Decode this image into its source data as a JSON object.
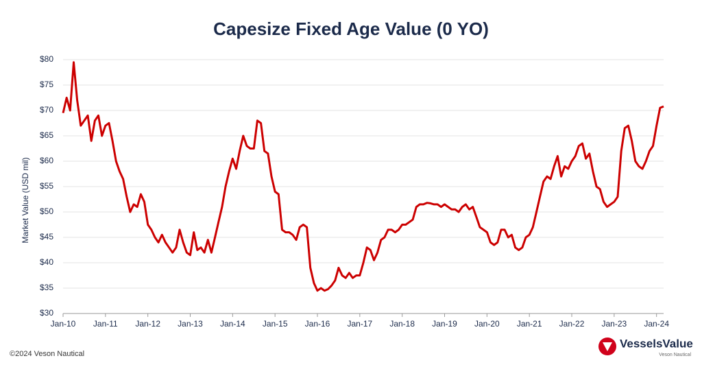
{
  "chart_data": {
    "type": "line",
    "title": "Capesize Fixed Age Value (0 YO)",
    "y_label": "Market Value (USD mil)",
    "color": "#cc0000",
    "grid": true,
    "categories": [
      "Jan-10",
      null,
      null,
      null,
      null,
      null,
      null,
      null,
      null,
      null,
      null,
      null,
      "Jan-11",
      null,
      null,
      null,
      null,
      null,
      null,
      null,
      null,
      null,
      null,
      null,
      "Jan-12",
      null,
      null,
      null,
      null,
      null,
      null,
      null,
      null,
      null,
      null,
      null,
      "Jan-13",
      null,
      null,
      null,
      null,
      null,
      null,
      null,
      null,
      null,
      null,
      null,
      "Jan-14",
      null,
      null,
      null,
      null,
      null,
      null,
      null,
      null,
      null,
      null,
      null,
      "Jan-15",
      null,
      null,
      null,
      null,
      null,
      null,
      null,
      null,
      null,
      null,
      null,
      "Jan-16",
      null,
      null,
      null,
      null,
      null,
      null,
      null,
      null,
      null,
      null,
      null,
      "Jan-17",
      null,
      null,
      null,
      null,
      null,
      null,
      null,
      null,
      null,
      null,
      null,
      "Jan-18",
      null,
      null,
      null,
      null,
      null,
      null,
      null,
      null,
      null,
      null,
      null,
      "Jan-19",
      null,
      null,
      null,
      null,
      null,
      null,
      null,
      null,
      null,
      null,
      null,
      "Jan-20",
      null,
      null,
      null,
      null,
      null,
      null,
      null,
      null,
      null,
      null,
      null,
      "Jan-21",
      null,
      null,
      null,
      null,
      null,
      null,
      null,
      null,
      null,
      null,
      null,
      "Jan-22",
      null,
      null,
      null,
      null,
      null,
      null,
      null,
      null,
      null,
      null,
      null,
      "Jan-23",
      null,
      null,
      null,
      null,
      null,
      null,
      null,
      null,
      null,
      null,
      null,
      "Jan-24",
      null,
      null
    ],
    "values": [
      69.5,
      72.5,
      70,
      79.5,
      72,
      67,
      68,
      69,
      64,
      68,
      69,
      65,
      67,
      67.5,
      64,
      60,
      58,
      56.5,
      53,
      50,
      51.5,
      51,
      53.5,
      52,
      47.5,
      46.5,
      45,
      44,
      45.5,
      44,
      43,
      42,
      43,
      46.5,
      44,
      42,
      41.5,
      46,
      42.5,
      43,
      42,
      44.5,
      42,
      45,
      48,
      51,
      55,
      58,
      60.5,
      58.5,
      62,
      65,
      63,
      62.5,
      62.5,
      68,
      67.5,
      62,
      61.5,
      57,
      54,
      53.5,
      46.5,
      46,
      46,
      45.5,
      44.5,
      47,
      47.5,
      47,
      39,
      36,
      34.5,
      35,
      34.5,
      34.8,
      35.5,
      36.5,
      39,
      37.5,
      37,
      38,
      37,
      37.5,
      37.5,
      40,
      43,
      42.5,
      40.5,
      42,
      44.5,
      45,
      46.5,
      46.5,
      46,
      46.5,
      47.5,
      47.5,
      48,
      48.5,
      51,
      51.5,
      51.5,
      51.8,
      51.7,
      51.5,
      51.5,
      51,
      51.5,
      51,
      50.5,
      50.5,
      50,
      51,
      51.5,
      50.5,
      51,
      49,
      47,
      46.5,
      46,
      44,
      43.5,
      44,
      46.5,
      46.5,
      45,
      45.5,
      43,
      42.5,
      43,
      45,
      45.5,
      47,
      50,
      53,
      56,
      57,
      56.5,
      59,
      61,
      57,
      59,
      58.5,
      60,
      61,
      63,
      63.5,
      60.5,
      61.5,
      58,
      55,
      54.5,
      52,
      51,
      51.5,
      52,
      53,
      62,
      66.5,
      67,
      64,
      60,
      59,
      58.5,
      60,
      62,
      63,
      67,
      70.5,
      70.8
    ],
    "ylim": [
      30,
      80
    ],
    "yticks": [
      {
        "value": 30,
        "label": "$30"
      },
      {
        "value": 35,
        "label": "$35"
      },
      {
        "value": 40,
        "label": "$40"
      },
      {
        "value": 45,
        "label": "$45"
      },
      {
        "value": 50,
        "label": "$50"
      },
      {
        "value": 55,
        "label": "$55"
      },
      {
        "value": 60,
        "label": "$60"
      },
      {
        "value": 65,
        "label": "$65"
      },
      {
        "value": 70,
        "label": "$70"
      },
      {
        "value": 75,
        "label": "$75"
      },
      {
        "value": 80,
        "label": "$80"
      }
    ]
  },
  "footer": {
    "copyright": "©2024 Veson Nautical",
    "logo": "VesselsValue",
    "logo_sub": "Veson Nautical"
  }
}
